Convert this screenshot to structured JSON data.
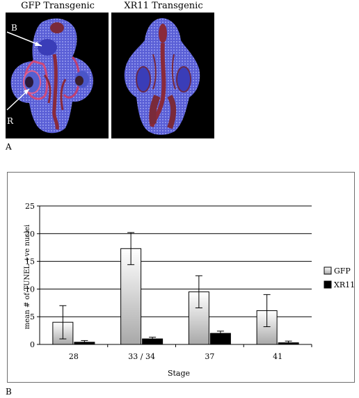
{
  "panel_a": {
    "label": "A",
    "left_title": "GFP Transgenic",
    "right_title": "XR11 Transgenic",
    "annotations": [
      "B",
      "R"
    ]
  },
  "panel_b": {
    "label": "B"
  },
  "chart_data": {
    "type": "bar",
    "categories": [
      "28",
      "33 / 34",
      "37",
      "41"
    ],
    "series": [
      {
        "name": "GFP",
        "values": [
          4.0,
          17.3,
          9.5,
          6.1
        ],
        "error": [
          3.0,
          2.9,
          2.9,
          2.9
        ],
        "color": "#d9d9d9"
      },
      {
        "name": "XR11",
        "values": [
          0.4,
          1.0,
          2.0,
          0.3
        ],
        "error": [
          0.3,
          0.3,
          0.4,
          0.3
        ],
        "color": "#000000"
      }
    ],
    "xlabel": "Stage",
    "ylabel": "mean # of TUNEL +ve nuclei",
    "ylim": [
      0,
      25
    ],
    "yticks": [
      0,
      5,
      10,
      15,
      20,
      25
    ],
    "grid": true,
    "legend": "right"
  }
}
